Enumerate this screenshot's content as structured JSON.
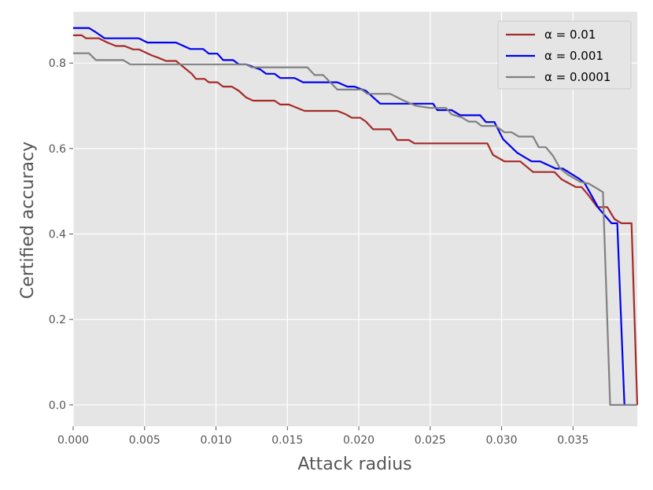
{
  "chart_data": {
    "type": "line",
    "xlabel": "Attack radius",
    "ylabel": "Certified accuracy",
    "xlim": [
      0,
      0.0395
    ],
    "ylim": [
      -0.05,
      0.92
    ],
    "xticks": [
      0.0,
      0.005,
      0.01,
      0.015,
      0.02,
      0.025,
      0.03,
      0.035
    ],
    "xtick_labels": [
      "0.000",
      "0.005",
      "0.010",
      "0.015",
      "0.020",
      "0.025",
      "0.030",
      "0.035"
    ],
    "yticks": [
      0.0,
      0.2,
      0.4,
      0.6,
      0.8
    ],
    "ytick_labels": [
      "0.0",
      "0.2",
      "0.4",
      "0.6",
      "0.8"
    ],
    "grid": true,
    "legend_position": "top-right",
    "series": [
      {
        "name": "α = 0.01",
        "color": "#a52a2a",
        "points": [
          [
            0.0,
            0.865
          ],
          [
            0.0006,
            0.865
          ],
          [
            0.0009,
            0.858
          ],
          [
            0.0018,
            0.858
          ],
          [
            0.0024,
            0.848
          ],
          [
            0.003,
            0.84
          ],
          [
            0.0036,
            0.84
          ],
          [
            0.0042,
            0.832
          ],
          [
            0.0046,
            0.832
          ],
          [
            0.0055,
            0.818
          ],
          [
            0.006,
            0.812
          ],
          [
            0.0065,
            0.805
          ],
          [
            0.0072,
            0.805
          ],
          [
            0.0083,
            0.775
          ],
          [
            0.0086,
            0.763
          ],
          [
            0.0092,
            0.763
          ],
          [
            0.0095,
            0.755
          ],
          [
            0.0101,
            0.755
          ],
          [
            0.0105,
            0.745
          ],
          [
            0.0111,
            0.745
          ],
          [
            0.0116,
            0.735
          ],
          [
            0.0121,
            0.72
          ],
          [
            0.0126,
            0.712
          ],
          [
            0.0141,
            0.712
          ],
          [
            0.0145,
            0.703
          ],
          [
            0.0151,
            0.703
          ],
          [
            0.0162,
            0.688
          ],
          [
            0.0185,
            0.688
          ],
          [
            0.0191,
            0.68
          ],
          [
            0.0195,
            0.672
          ],
          [
            0.0201,
            0.672
          ],
          [
            0.0205,
            0.663
          ],
          [
            0.021,
            0.645
          ],
          [
            0.0222,
            0.645
          ],
          [
            0.0227,
            0.62
          ],
          [
            0.0235,
            0.62
          ],
          [
            0.0239,
            0.612
          ],
          [
            0.029,
            0.612
          ],
          [
            0.0294,
            0.585
          ],
          [
            0.0302,
            0.57
          ],
          [
            0.0313,
            0.57
          ],
          [
            0.0322,
            0.545
          ],
          [
            0.0337,
            0.545
          ],
          [
            0.0342,
            0.528
          ],
          [
            0.0352,
            0.51
          ],
          [
            0.0356,
            0.51
          ],
          [
            0.0361,
            0.49
          ],
          [
            0.0367,
            0.463
          ],
          [
            0.0374,
            0.463
          ],
          [
            0.0379,
            0.435
          ],
          [
            0.0384,
            0.425
          ],
          [
            0.0391,
            0.425
          ],
          [
            0.0395,
            0.0
          ]
        ]
      },
      {
        "name": "α = 0.001",
        "color": "#0000ee",
        "points": [
          [
            0.0,
            0.882
          ],
          [
            0.0011,
            0.882
          ],
          [
            0.0016,
            0.872
          ],
          [
            0.0022,
            0.858
          ],
          [
            0.0046,
            0.858
          ],
          [
            0.0052,
            0.848
          ],
          [
            0.0072,
            0.848
          ],
          [
            0.0082,
            0.833
          ],
          [
            0.0091,
            0.833
          ],
          [
            0.0095,
            0.822
          ],
          [
            0.0101,
            0.822
          ],
          [
            0.0105,
            0.807
          ],
          [
            0.0112,
            0.807
          ],
          [
            0.0116,
            0.797
          ],
          [
            0.0121,
            0.797
          ],
          [
            0.0131,
            0.785
          ],
          [
            0.0135,
            0.775
          ],
          [
            0.0141,
            0.775
          ],
          [
            0.0145,
            0.765
          ],
          [
            0.0155,
            0.765
          ],
          [
            0.0161,
            0.755
          ],
          [
            0.0185,
            0.755
          ],
          [
            0.0192,
            0.745
          ],
          [
            0.0197,
            0.745
          ],
          [
            0.0205,
            0.735
          ],
          [
            0.021,
            0.72
          ],
          [
            0.0215,
            0.705
          ],
          [
            0.0252,
            0.705
          ],
          [
            0.0255,
            0.69
          ],
          [
            0.0265,
            0.69
          ],
          [
            0.0271,
            0.678
          ],
          [
            0.0285,
            0.678
          ],
          [
            0.0289,
            0.662
          ],
          [
            0.0295,
            0.662
          ],
          [
            0.0301,
            0.622
          ],
          [
            0.0311,
            0.59
          ],
          [
            0.0321,
            0.57
          ],
          [
            0.0327,
            0.57
          ],
          [
            0.0338,
            0.553
          ],
          [
            0.0343,
            0.553
          ],
          [
            0.0354,
            0.53
          ],
          [
            0.0358,
            0.52
          ],
          [
            0.0368,
            0.46
          ],
          [
            0.0377,
            0.425
          ],
          [
            0.0381,
            0.425
          ],
          [
            0.0386,
            0.0
          ]
        ]
      },
      {
        "name": "α = 0.0001",
        "color": "#808080",
        "points": [
          [
            0.0,
            0.823
          ],
          [
            0.0011,
            0.823
          ],
          [
            0.0016,
            0.807
          ],
          [
            0.0035,
            0.807
          ],
          [
            0.004,
            0.797
          ],
          [
            0.0121,
            0.797
          ],
          [
            0.0125,
            0.79
          ],
          [
            0.0164,
            0.79
          ],
          [
            0.0169,
            0.772
          ],
          [
            0.0175,
            0.772
          ],
          [
            0.0185,
            0.738
          ],
          [
            0.0202,
            0.738
          ],
          [
            0.0206,
            0.728
          ],
          [
            0.0222,
            0.728
          ],
          [
            0.0231,
            0.713
          ],
          [
            0.024,
            0.7
          ],
          [
            0.025,
            0.695
          ],
          [
            0.0261,
            0.695
          ],
          [
            0.0265,
            0.68
          ],
          [
            0.0272,
            0.673
          ],
          [
            0.0277,
            0.663
          ],
          [
            0.0282,
            0.663
          ],
          [
            0.0286,
            0.653
          ],
          [
            0.0296,
            0.653
          ],
          [
            0.0302,
            0.638
          ],
          [
            0.0307,
            0.638
          ],
          [
            0.0312,
            0.628
          ],
          [
            0.0322,
            0.628
          ],
          [
            0.0326,
            0.603
          ],
          [
            0.0331,
            0.603
          ],
          [
            0.0336,
            0.583
          ],
          [
            0.0341,
            0.553
          ],
          [
            0.0346,
            0.54
          ],
          [
            0.0355,
            0.522
          ],
          [
            0.0361,
            0.518
          ],
          [
            0.0366,
            0.508
          ],
          [
            0.0371,
            0.498
          ],
          [
            0.0376,
            0.0
          ],
          [
            0.0395,
            0.0
          ]
        ]
      }
    ]
  }
}
